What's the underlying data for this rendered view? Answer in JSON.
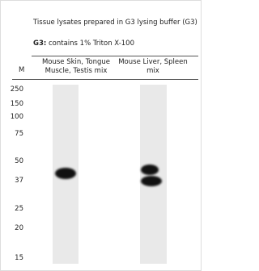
{
  "header": {
    "title": "Tissue lysates prepared in G3 lysing buffer (G3)",
    "note": {
      "label": "G3:",
      "text": "contains 1% Triton X-100"
    }
  },
  "columns": {
    "marker": "M",
    "lanes": [
      {
        "lines": [
          "Mouse Skin, Tongue",
          "Muscle, Testis mix"
        ]
      },
      {
        "lines": [
          "Mouse Liver, Spleen",
          "mix"
        ]
      }
    ]
  },
  "markers": [
    250,
    150,
    100,
    75,
    50,
    37,
    25,
    20,
    15
  ]
}
